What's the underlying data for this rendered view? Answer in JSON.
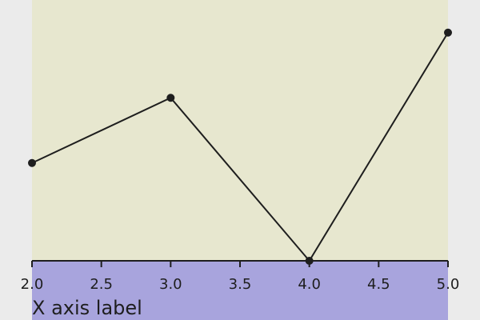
{
  "colors": {
    "page_background": "#ebebeb",
    "plot_background": "#e7e7cf",
    "axis_band": "#a8a4dd",
    "line": "#1e1e1e",
    "marker": "#1e1e1e",
    "text": "#1e1e1e"
  },
  "chart_data": {
    "type": "line",
    "title": "",
    "xlabel": "X axis label",
    "ylabel": "",
    "x": [
      2.0,
      3.0,
      4.0,
      5.0
    ],
    "series": [
      {
        "values": [
          0.3,
          0.5,
          0.0,
          0.7
        ]
      }
    ],
    "xlim": [
      2.0,
      5.0
    ],
    "ylim": [
      0.0,
      0.8
    ],
    "xticks": [
      2.0,
      2.5,
      3.0,
      3.5,
      4.0,
      4.5,
      5.0
    ],
    "xtick_labels": [
      "2.0",
      "2.5",
      "3.0",
      "3.5",
      "4.0",
      "4.5",
      "5.0"
    ],
    "yticks_visible": false,
    "grid": false,
    "markers": true
  }
}
